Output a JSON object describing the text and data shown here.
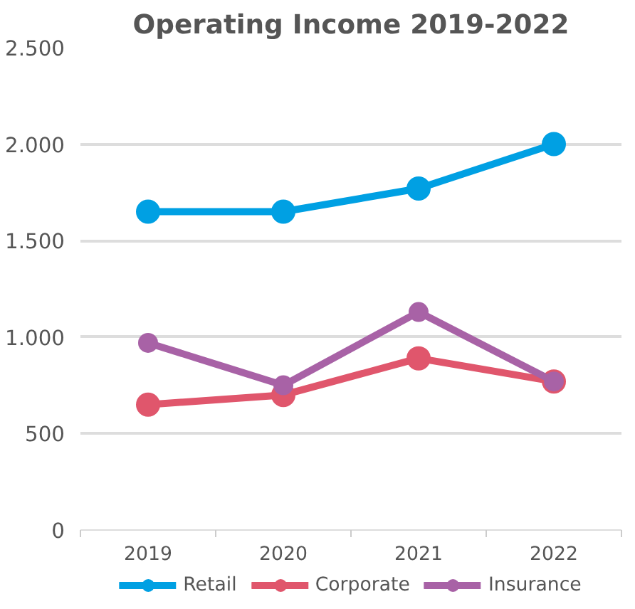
{
  "chart_data": {
    "type": "line",
    "title": "Operating Income 2019-2022",
    "categories": [
      "2019",
      "2020",
      "2021",
      "2022"
    ],
    "series": [
      {
        "name": "Retail",
        "color": "#00a0e3",
        "values": [
          1650,
          1650,
          1770,
          2000
        ]
      },
      {
        "name": "Corporate",
        "color": "#e0566c",
        "values": [
          650,
          700,
          890,
          770
        ]
      },
      {
        "name": "Insurance",
        "color": "#a862a6",
        "values": [
          970,
          750,
          1130,
          770
        ]
      }
    ],
    "ylim": [
      0,
      2500
    ],
    "yticks": [
      {
        "value": 0,
        "label": "0"
      },
      {
        "value": 500,
        "label": "500"
      },
      {
        "value": 1000,
        "label": "1.000"
      },
      {
        "value": 1500,
        "label": "1.500"
      },
      {
        "value": 2000,
        "label": "2.000"
      },
      {
        "value": 2500,
        "label": "2.500"
      }
    ],
    "grid": "y",
    "legend": "bottom",
    "marker": "circle",
    "line_style": "solid"
  }
}
